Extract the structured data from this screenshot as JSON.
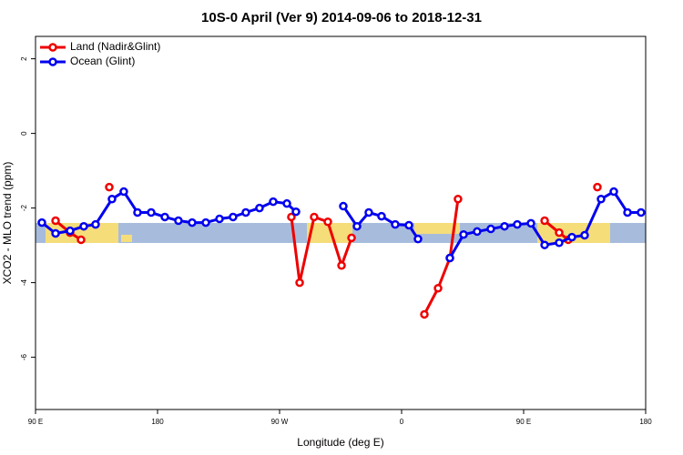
{
  "chart_data": {
    "type": "line",
    "title": "10S-0 April (Ver 9)   2014-09-06 to 2018-12-31",
    "xlabel": "Longitude (deg E)",
    "ylabel": "XCO2 - MLO trend (ppm)",
    "xlim": [
      90,
      540
    ],
    "ylim": [
      -7.4,
      2.6
    ],
    "xticks": [
      {
        "value": 90,
        "label": "90 E"
      },
      180,
      {
        "value": 270,
        "label": "90 W"
      },
      {
        "value": 360,
        "label": "0"
      },
      {
        "value": 450,
        "label": "90 E"
      },
      {
        "value": 540,
        "label": "180"
      }
    ],
    "yticks": [
      2,
      0,
      -2,
      -4,
      -6
    ],
    "legend": "top-left",
    "series": [
      {
        "name": "Land (Nadir&Glint)",
        "color": "#ee0000",
        "x": [
          104.8,
          115.5,
          123.6,
          130,
          144.4,
          200,
          278.7,
          284.8,
          295.5,
          305.6,
          315.7,
          323.1,
          350,
          376.8,
          386.9,
          395.6,
          401.6,
          430,
          465.5,
          476.2,
          482.9,
          490,
          504.4
        ],
        "values": [
          -2.34,
          -2.66,
          -2.85,
          null,
          -1.44,
          null,
          -2.24,
          -4.0,
          -2.24,
          -2.37,
          -3.54,
          -2.8,
          null,
          -4.85,
          -4.15,
          -3.34,
          -1.76,
          null,
          -2.34,
          -2.66,
          -2.85,
          null,
          -1.44
        ]
      },
      {
        "name": "Ocean (Glint)",
        "color": "#0000ee",
        "x": [
          94.7,
          104.8,
          115.5,
          125.6,
          134.3,
          146.4,
          155.1,
          165.2,
          175.3,
          185.4,
          195.4,
          205.5,
          215.6,
          225.7,
          235.7,
          245.1,
          255.2,
          265.3,
          275.4,
          282.1,
          300,
          317.0,
          327.1,
          335.8,
          345.2,
          355.3,
          365.4,
          372.1,
          385,
          395.6,
          405.7,
          415.7,
          425.8,
          435.9,
          445.3,
          455.4,
          465.5,
          476.2,
          485.6,
          495.0,
          507.1,
          516.5,
          526.6,
          536.6
        ],
        "values": [
          -2.39,
          -2.68,
          -2.61,
          -2.49,
          -2.44,
          -1.76,
          -1.56,
          -2.12,
          -2.12,
          -2.24,
          -2.34,
          -2.39,
          -2.39,
          -2.29,
          -2.24,
          -2.12,
          -2.0,
          -1.83,
          -1.88,
          -2.1,
          null,
          -1.95,
          -2.49,
          -2.12,
          -2.22,
          -2.44,
          -2.46,
          -2.83,
          null,
          -3.34,
          -2.71,
          -2.63,
          -2.56,
          -2.49,
          -2.44,
          -2.41,
          -2.99,
          -2.93,
          -2.78,
          -2.73,
          -1.76,
          -1.56,
          -2.12,
          -2.12
        ]
      }
    ]
  }
}
